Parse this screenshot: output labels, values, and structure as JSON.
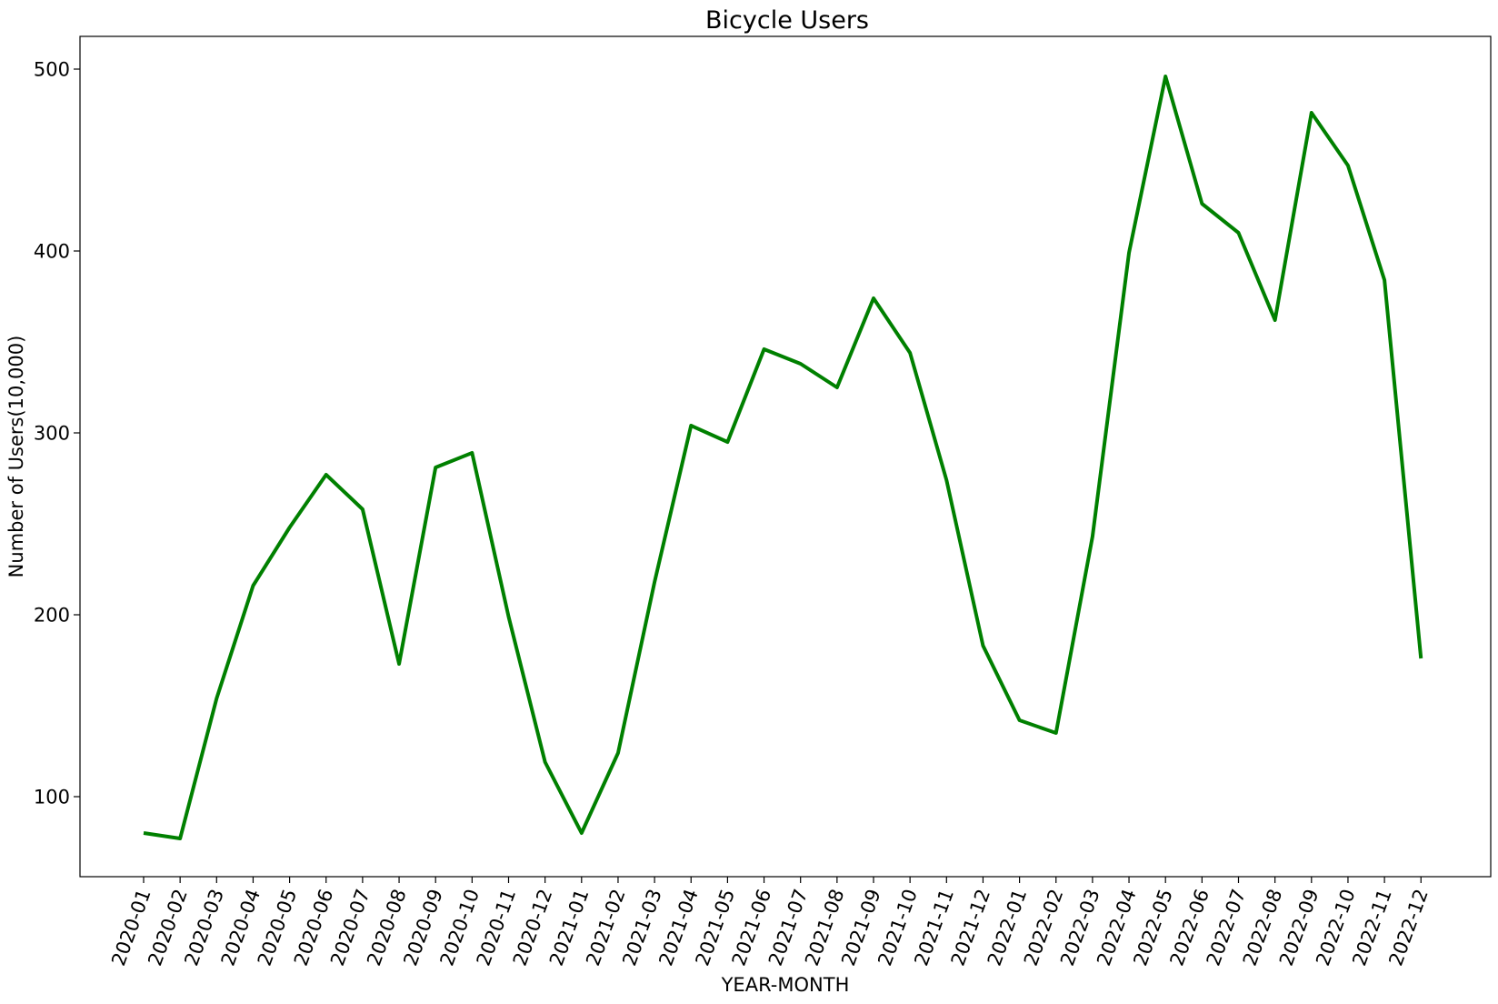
{
  "chart_data": {
    "type": "line",
    "title": "Bicycle Users",
    "xlabel": "YEAR-MONTH",
    "ylabel": "Number of Users(10,000)",
    "ylim": [
      56,
      518
    ],
    "yticks": [
      100,
      200,
      300,
      400,
      500
    ],
    "grid": false,
    "line_color": "#008000",
    "x": [
      "2020-01",
      "2020-02",
      "2020-03",
      "2020-04",
      "2020-05",
      "2020-06",
      "2020-07",
      "2020-08",
      "2020-09",
      "2020-10",
      "2020-11",
      "2020-12",
      "2021-01",
      "2021-02",
      "2021-03",
      "2021-04",
      "2021-05",
      "2021-06",
      "2021-07",
      "2021-08",
      "2021-09",
      "2021-10",
      "2021-11",
      "2021-12",
      "2022-01",
      "2022-02",
      "2022-03",
      "2022-04",
      "2022-05",
      "2022-06",
      "2022-07",
      "2022-08",
      "2022-09",
      "2022-10",
      "2022-11",
      "2022-12"
    ],
    "series": [
      {
        "values": [
          80,
          77,
          154,
          216,
          248,
          277,
          258,
          173,
          281,
          289,
          199,
          119,
          80,
          124,
          218,
          304,
          295,
          346,
          338,
          325,
          374,
          344,
          274,
          183,
          142,
          135,
          243,
          399,
          496,
          426,
          410,
          362,
          476,
          447,
          384,
          176
        ]
      }
    ]
  }
}
